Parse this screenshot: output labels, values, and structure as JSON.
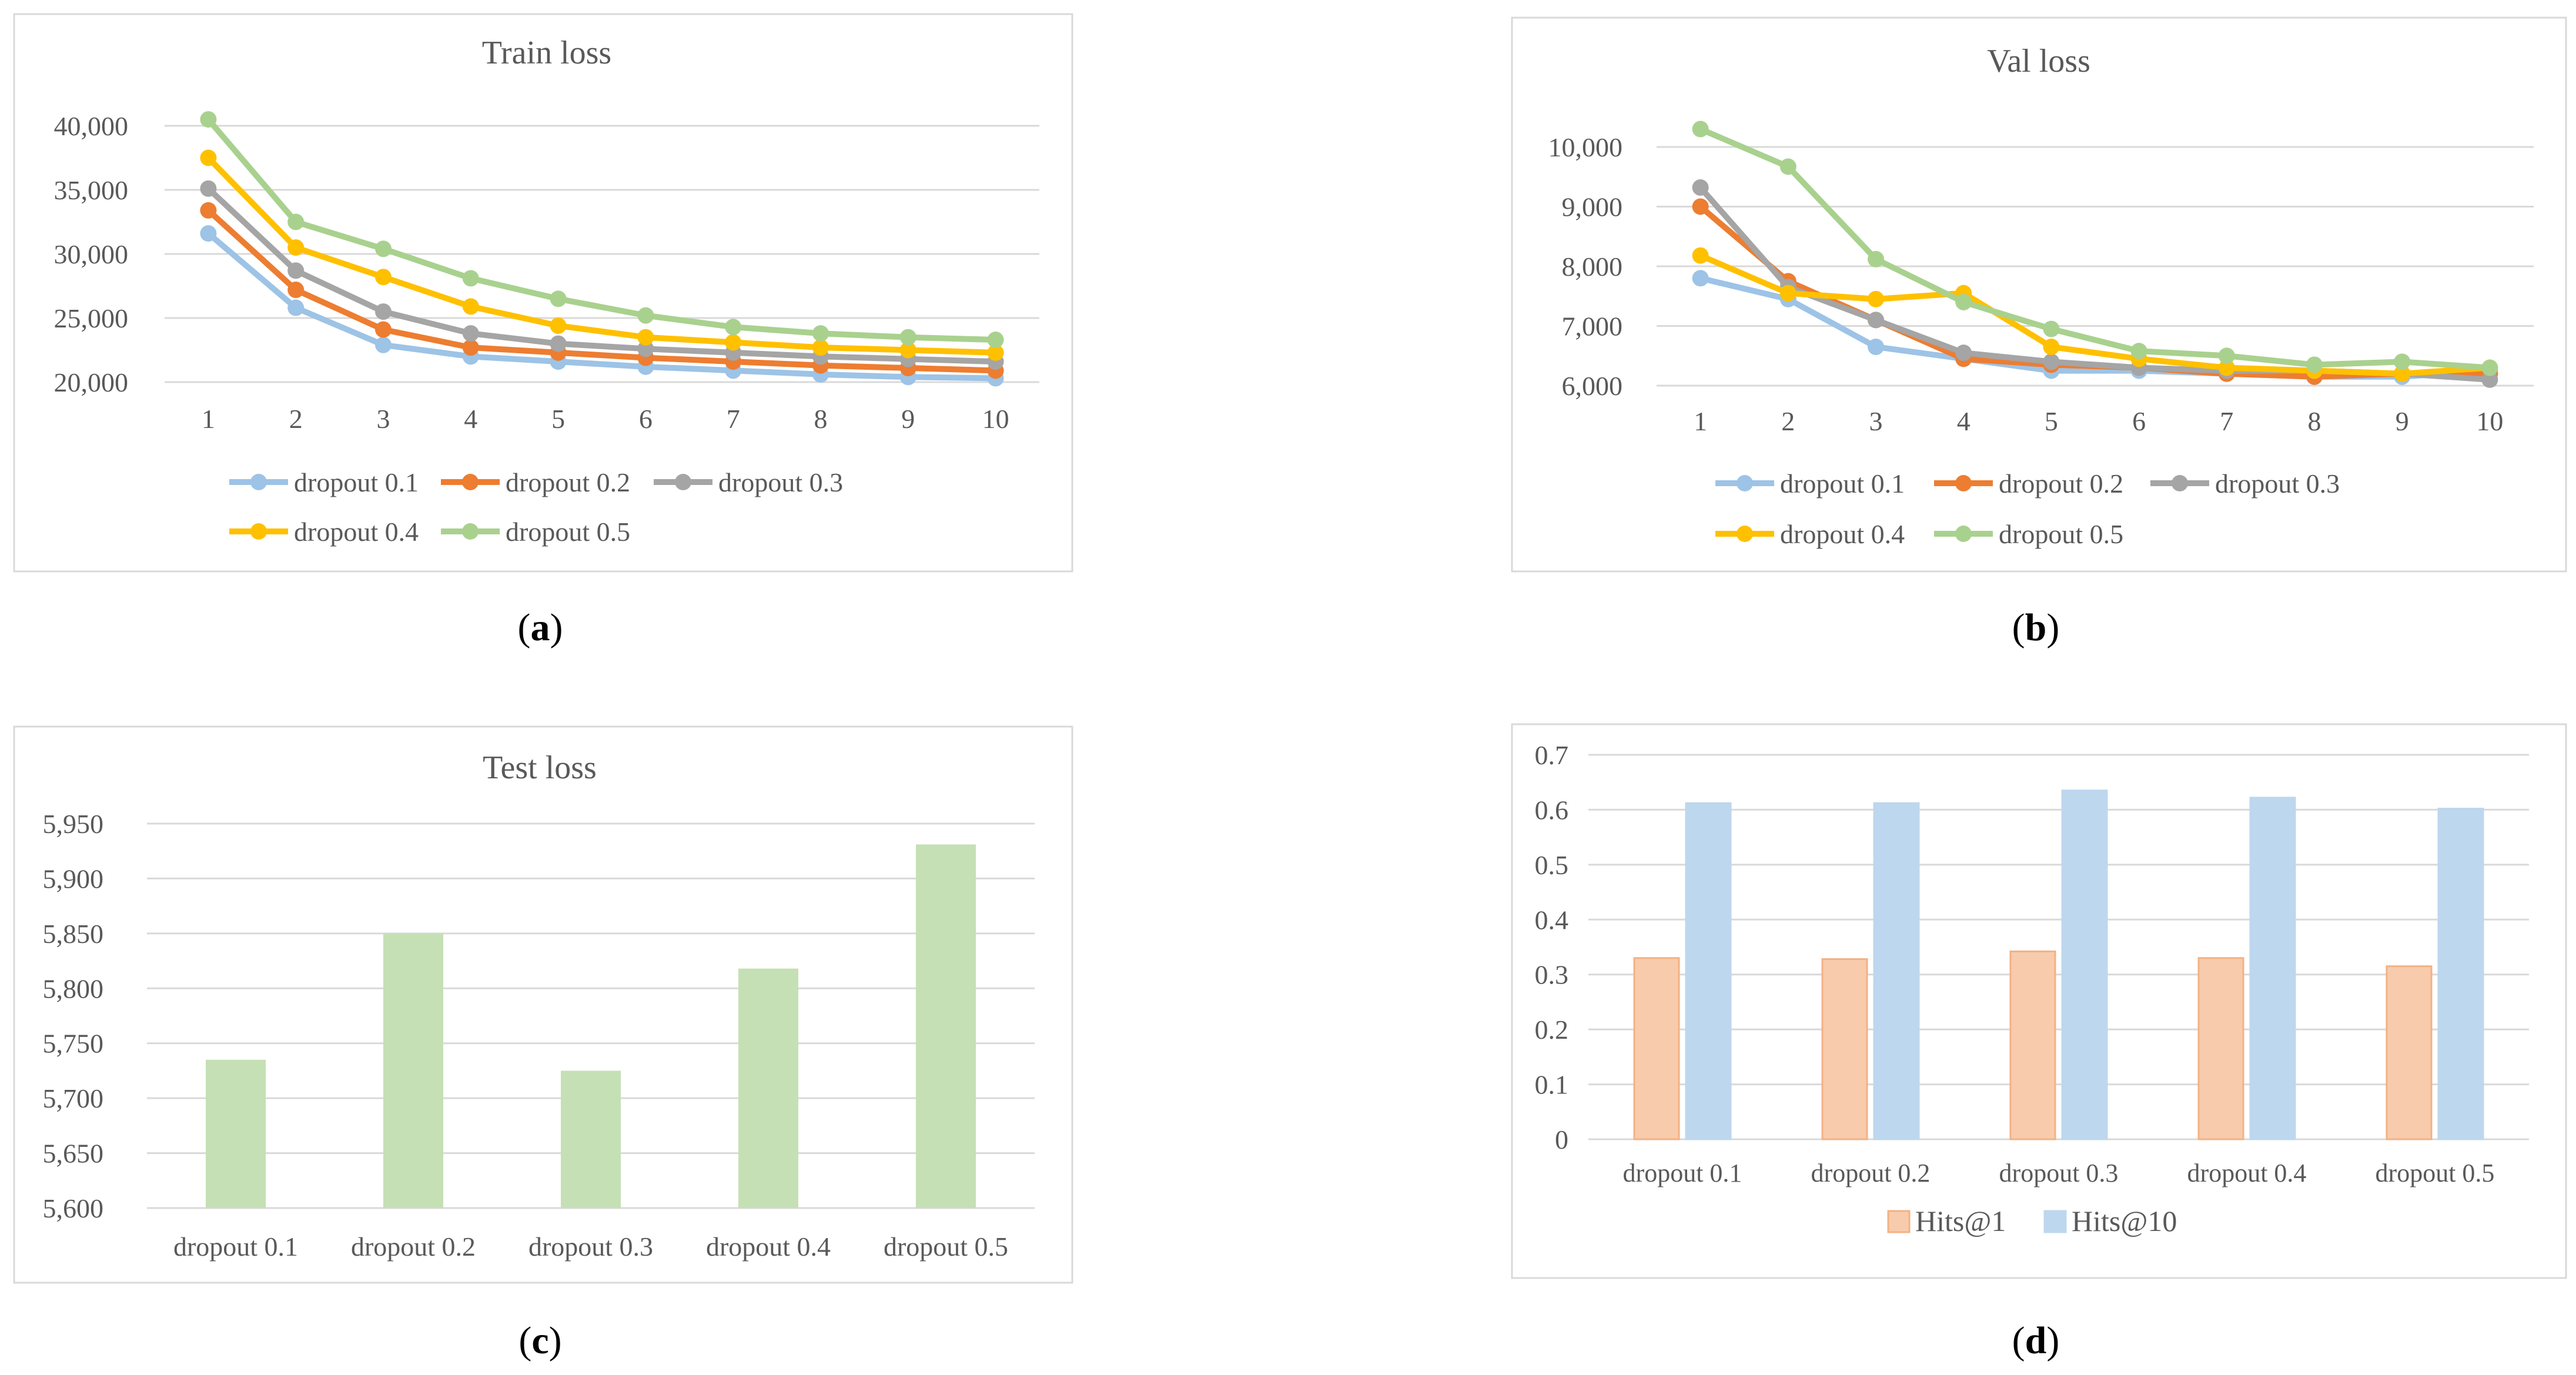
{
  "captions": {
    "a": "a",
    "b": "b",
    "c": "c",
    "d": "d"
  },
  "colors": {
    "dropout_0_1": "#9DC3E6",
    "dropout_0_2": "#ED7D31",
    "dropout_0_3": "#A5A5A5",
    "dropout_0_4": "#FFC000",
    "dropout_0_5": "#A9D18E",
    "test_bar": "#C5E0B4",
    "hits1_fill": "#F8CBAD",
    "hits1_edge": "#F4B183",
    "hits10_fill": "#BDD7EE",
    "gridline": "#D9D9D9",
    "frame": "#D9D9D9",
    "axis_text": "#595959"
  },
  "chart_data": [
    {
      "id": "a",
      "type": "line",
      "title": "Train loss",
      "xlabel": "",
      "ylabel": "",
      "x": [
        1,
        2,
        3,
        4,
        5,
        6,
        7,
        8,
        9,
        10
      ],
      "y_ticks": [
        "20,000",
        "25,000",
        "30,000",
        "35,000",
        "40,000"
      ],
      "ylim": [
        20000,
        40000
      ],
      "grid": true,
      "legend": "bottom",
      "series": [
        {
          "name": "dropout 0.1",
          "values": [
            31600,
            25800,
            22900,
            22000,
            21600,
            21200,
            20900,
            20600,
            20400,
            20300
          ]
        },
        {
          "name": "dropout 0.2",
          "values": [
            33400,
            27200,
            24100,
            22700,
            22300,
            21900,
            21600,
            21300,
            21100,
            20900
          ]
        },
        {
          "name": "dropout 0.3",
          "values": [
            35100,
            28700,
            25500,
            23800,
            23000,
            22600,
            22300,
            22000,
            21800,
            21600
          ]
        },
        {
          "name": "dropout 0.4",
          "values": [
            37500,
            30500,
            28200,
            25900,
            24400,
            23500,
            23100,
            22700,
            22500,
            22300
          ]
        },
        {
          "name": "dropout 0.5",
          "values": [
            40500,
            32500,
            30400,
            28100,
            26500,
            25200,
            24300,
            23800,
            23500,
            23300
          ]
        }
      ]
    },
    {
      "id": "b",
      "type": "line",
      "title": "Val loss",
      "xlabel": "",
      "ylabel": "",
      "x": [
        1,
        2,
        3,
        4,
        5,
        6,
        7,
        8,
        9,
        10
      ],
      "y_ticks": [
        "6,000",
        "7,000",
        "8,000",
        "9,000",
        "10,000"
      ],
      "ylim": [
        6000,
        10000
      ],
      "grid": true,
      "legend": "bottom",
      "series": [
        {
          "name": "dropout 0.1",
          "values": [
            7800,
            7450,
            6650,
            6450,
            6250,
            6250,
            6200,
            6150,
            6150,
            6250
          ]
        },
        {
          "name": "dropout 0.2",
          "values": [
            9000,
            7750,
            7100,
            6450,
            6350,
            6300,
            6200,
            6150,
            6200,
            6200
          ]
        },
        {
          "name": "dropout 0.3",
          "values": [
            9320,
            7650,
            7100,
            6550,
            6400,
            6300,
            6250,
            6250,
            6200,
            6100
          ]
        },
        {
          "name": "dropout 0.4",
          "values": [
            8180,
            7550,
            7450,
            7550,
            6650,
            6450,
            6300,
            6250,
            6200,
            6300
          ]
        },
        {
          "name": "dropout 0.5",
          "values": [
            10300,
            9670,
            8120,
            7400,
            6950,
            6580,
            6500,
            6350,
            6400,
            6300
          ]
        }
      ]
    },
    {
      "id": "c",
      "type": "bar",
      "title": "Test loss",
      "xlabel": "",
      "ylabel": "",
      "categories": [
        "dropout 0.1",
        "dropout 0.2",
        "dropout 0.3",
        "dropout 0.4",
        "dropout 0.5"
      ],
      "values": [
        5735,
        5850,
        5725,
        5818,
        5931
      ],
      "y_ticks": [
        "5,600",
        "5,650",
        "5,700",
        "5,750",
        "5,800",
        "5,850",
        "5,900",
        "5,950"
      ],
      "ylim": [
        5600,
        5950
      ],
      "grid": true
    },
    {
      "id": "d",
      "type": "bar",
      "title": "",
      "xlabel": "",
      "ylabel": "",
      "categories": [
        "dropout 0.1",
        "dropout 0.2",
        "dropout 0.3",
        "dropout 0.4",
        "dropout 0.5"
      ],
      "y_ticks": [
        "0",
        "0.1",
        "0.2",
        "0.3",
        "0.4",
        "0.5",
        "0.6",
        "0.7"
      ],
      "ylim": [
        0,
        0.7
      ],
      "grid": true,
      "legend": "bottom",
      "series": [
        {
          "name": "Hits@1",
          "values": [
            0.33,
            0.328,
            0.342,
            0.33,
            0.315
          ]
        },
        {
          "name": "Hits@10",
          "values": [
            0.612,
            0.612,
            0.635,
            0.622,
            0.602
          ]
        }
      ]
    }
  ]
}
